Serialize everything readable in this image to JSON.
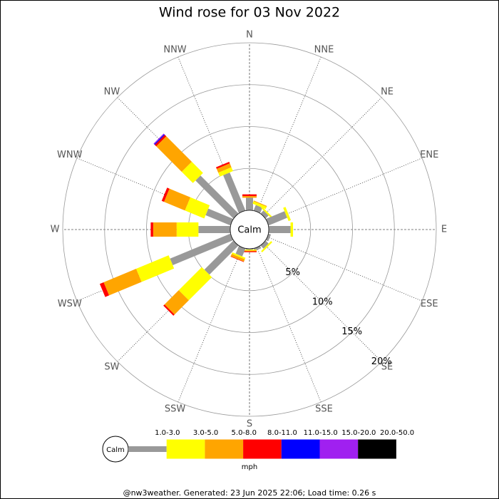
{
  "chart_data": {
    "type": "windrose",
    "title": "Wind rose for 03 Nov 2022",
    "center_label": "Calm",
    "unit_label": "mph",
    "footer": "@nw3weather. Generated: 23 Jun 2025 22:06; Load time: 0.26 s",
    "categories": [
      "N",
      "NNE",
      "NE",
      "ENE",
      "E",
      "ESE",
      "SE",
      "SSE",
      "S",
      "SSW",
      "SW",
      "WSW",
      "W",
      "WNW",
      "NW",
      "NNW"
    ],
    "ylim": [
      0,
      20
    ],
    "yticks": [
      {
        "value": 5,
        "label": "5%"
      },
      {
        "value": 10,
        "label": "10%"
      },
      {
        "value": 15,
        "label": "15%"
      },
      {
        "value": 20,
        "label": "20%"
      }
    ],
    "grid": true,
    "series": [
      {
        "name": "1.0-3.0",
        "color": "#999999",
        "values": [
          1.5,
          0.7,
          0.5,
          2.4,
          2.6,
          0.3,
          0.5,
          0.3,
          0.1,
          1.0,
          4.9,
          7.8,
          3.8,
          3.2,
          6.4,
          4.9
        ]
      },
      {
        "name": "3.0-5.0",
        "color": "#ffff00",
        "values": [
          0,
          0.3,
          0.2,
          0.3,
          0.3,
          0,
          0.2,
          0,
          0.1,
          0.2,
          3.9,
          4.2,
          2.6,
          2.5,
          1.9,
          0.5
        ]
      },
      {
        "name": "5.0-8.0",
        "color": "#ffa500",
        "values": [
          0.2,
          0.1,
          0,
          0,
          0,
          0,
          0,
          0,
          0.1,
          0.3,
          2.4,
          4.2,
          2.8,
          2.7,
          4.3,
          0.5
        ]
      },
      {
        "name": "8.0-11.0",
        "color": "#ff0000",
        "values": [
          0.2,
          0,
          0,
          0,
          0,
          0,
          0,
          0,
          0.1,
          0.05,
          0.2,
          0.5,
          0.3,
          0.3,
          0.25,
          0.2
        ]
      },
      {
        "name": "11.0-15.0",
        "color": "#0000ff",
        "values": [
          0,
          0,
          0,
          0,
          0,
          0,
          0,
          0,
          0,
          0,
          0,
          0,
          0,
          0,
          0.1,
          0
        ]
      },
      {
        "name": "15.0-20.0",
        "color": "#a020f0",
        "values": [
          0,
          0,
          0,
          0,
          0,
          0,
          0,
          0,
          0,
          0,
          0,
          0,
          0,
          0,
          0.1,
          0
        ]
      },
      {
        "name": "20.0-50.0",
        "color": "#000000",
        "values": [
          0,
          0,
          0,
          0,
          0,
          0,
          0,
          0,
          0,
          0,
          0,
          0,
          0,
          0,
          0,
          0
        ]
      }
    ]
  }
}
